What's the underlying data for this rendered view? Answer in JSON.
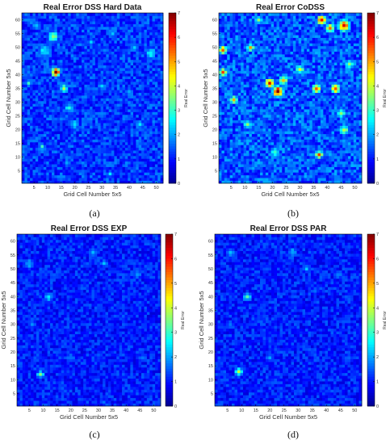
{
  "colors": {
    "colormap": [
      "#00008f",
      "#0000ff",
      "#0080ff",
      "#00ffff",
      "#80ff80",
      "#ffff00",
      "#ff8000",
      "#ff0000",
      "#800000"
    ],
    "frame": "#000000",
    "background": "#ffffff"
  },
  "chart_data": [
    {
      "type": "heatmap",
      "title": "Real Error DSS Hard Data",
      "xlabel": "Grid Cell Number 5x5",
      "ylabel": "Grid Cell Number 5x5",
      "colorbar_label": "Real Error",
      "caption": "(a)",
      "grid_size": [
        52,
        62
      ],
      "xlim": [
        0.5,
        52.5
      ],
      "ylim": [
        0.5,
        62.5
      ],
      "clim": [
        0,
        7
      ],
      "x_ticks": [
        5,
        10,
        15,
        20,
        25,
        30,
        35,
        40,
        45,
        50
      ],
      "y_ticks": [
        5,
        10,
        15,
        20,
        25,
        30,
        35,
        40,
        45,
        50,
        55,
        60
      ],
      "colorbar_ticks": [
        0,
        1,
        2,
        3,
        4,
        5,
        6,
        7
      ],
      "background_level": 1.25,
      "hotspots": [
        {
          "x": 13,
          "y": 41,
          "value": 6.6,
          "spread": 1.2
        },
        {
          "x": 12,
          "y": 54,
          "value": 3.6,
          "spread": 1.5
        },
        {
          "x": 9,
          "y": 49,
          "value": 2.6,
          "spread": 2.0
        },
        {
          "x": 16,
          "y": 35,
          "value": 3.8,
          "spread": 1.2
        },
        {
          "x": 18,
          "y": 28,
          "value": 2.6,
          "spread": 1.6
        },
        {
          "x": 20,
          "y": 22,
          "value": 2.4,
          "spread": 1.5
        },
        {
          "x": 6,
          "y": 58,
          "value": 2.2,
          "spread": 1.4
        },
        {
          "x": 8,
          "y": 14,
          "value": 2.8,
          "spread": 1.0
        },
        {
          "x": 3,
          "y": 37,
          "value": 2.8,
          "spread": 1.0
        },
        {
          "x": 48,
          "y": 48,
          "value": 2.8,
          "spread": 1.6
        },
        {
          "x": 42,
          "y": 50,
          "value": 2.3,
          "spread": 1.4
        },
        {
          "x": 26,
          "y": 52,
          "value": 2.2,
          "spread": 1.2
        },
        {
          "x": 34,
          "y": 55,
          "value": 2.1,
          "spread": 1.2
        },
        {
          "x": 44,
          "y": 22,
          "value": 2.4,
          "spread": 1.2
        },
        {
          "x": 30,
          "y": 36,
          "value": 2.1,
          "spread": 1.4
        },
        {
          "x": 40,
          "y": 34,
          "value": 2.0,
          "spread": 1.4
        },
        {
          "x": 33,
          "y": 4,
          "value": 2.4,
          "spread": 1.0
        },
        {
          "x": 17,
          "y": 8,
          "value": 2.0,
          "spread": 1.2
        }
      ]
    },
    {
      "type": "heatmap",
      "title": "Real Error CoDSS",
      "xlabel": "Grid Cell Number 5x5",
      "ylabel": "Grid Cell Number 5x5",
      "colorbar_label": "Real Error",
      "caption": "(b)",
      "grid_size": [
        52,
        62
      ],
      "xlim": [
        0.5,
        52.5
      ],
      "ylim": [
        0.5,
        62.5
      ],
      "clim": [
        0,
        7
      ],
      "x_ticks": [
        5,
        10,
        15,
        20,
        25,
        30,
        35,
        40,
        45,
        50
      ],
      "y_ticks": [
        5,
        10,
        15,
        20,
        25,
        30,
        35,
        40,
        45,
        50,
        55,
        60
      ],
      "colorbar_ticks": [
        0,
        1,
        2,
        3,
        4,
        5,
        6,
        7
      ],
      "background_level": 1.45,
      "hotspots": [
        {
          "x": 38,
          "y": 60,
          "value": 6.6,
          "spread": 1.2
        },
        {
          "x": 46,
          "y": 58,
          "value": 6.4,
          "spread": 1.5
        },
        {
          "x": 41,
          "y": 57,
          "value": 5.0,
          "spread": 1.2
        },
        {
          "x": 2,
          "y": 49,
          "value": 6.4,
          "spread": 1.0
        },
        {
          "x": 2,
          "y": 41,
          "value": 5.8,
          "spread": 1.0
        },
        {
          "x": 12,
          "y": 50,
          "value": 5.0,
          "spread": 1.0
        },
        {
          "x": 22,
          "y": 34,
          "value": 6.8,
          "spread": 1.4
        },
        {
          "x": 19,
          "y": 37,
          "value": 5.8,
          "spread": 1.3
        },
        {
          "x": 24,
          "y": 38,
          "value": 5.2,
          "spread": 1.1
        },
        {
          "x": 36,
          "y": 35,
          "value": 5.4,
          "spread": 1.2
        },
        {
          "x": 43,
          "y": 35,
          "value": 5.6,
          "spread": 1.2
        },
        {
          "x": 46,
          "y": 20,
          "value": 4.2,
          "spread": 1.2
        },
        {
          "x": 45,
          "y": 26,
          "value": 3.8,
          "spread": 1.2
        },
        {
          "x": 37,
          "y": 11,
          "value": 5.2,
          "spread": 1.0
        },
        {
          "x": 6,
          "y": 31,
          "value": 4.6,
          "spread": 1.1
        },
        {
          "x": 30,
          "y": 42,
          "value": 4.2,
          "spread": 1.2
        },
        {
          "x": 11,
          "y": 22,
          "value": 3.6,
          "spread": 1.2
        },
        {
          "x": 21,
          "y": 12,
          "value": 3.4,
          "spread": 1.2
        },
        {
          "x": 48,
          "y": 44,
          "value": 4.0,
          "spread": 1.2
        },
        {
          "x": 15,
          "y": 60,
          "value": 3.4,
          "spread": 1.2
        }
      ]
    },
    {
      "type": "heatmap",
      "title": "Real Error DSS EXP",
      "xlabel": "Grid Cell Number 5x5",
      "ylabel": "Grid Cell Number 5x5",
      "colorbar_label": "Real Error",
      "caption": "(c)",
      "grid_size": [
        52,
        62
      ],
      "xlim": [
        0.5,
        52.5
      ],
      "ylim": [
        0.5,
        62.5
      ],
      "clim": [
        0,
        7
      ],
      "x_ticks": [
        5,
        10,
        15,
        20,
        25,
        30,
        35,
        40,
        45,
        50
      ],
      "y_ticks": [
        5,
        10,
        15,
        20,
        25,
        30,
        35,
        40,
        45,
        50,
        55,
        60
      ],
      "colorbar_ticks": [
        0,
        1,
        2,
        3,
        4,
        5,
        6,
        7
      ],
      "background_level": 1.05,
      "hotspots": [
        {
          "x": 9,
          "y": 12,
          "value": 3.4,
          "spread": 1.0
        },
        {
          "x": 12,
          "y": 40,
          "value": 2.6,
          "spread": 1.3
        },
        {
          "x": 5,
          "y": 52,
          "value": 2.2,
          "spread": 1.5
        },
        {
          "x": 28,
          "y": 56,
          "value": 2.2,
          "spread": 1.4
        },
        {
          "x": 32,
          "y": 52,
          "value": 2.0,
          "spread": 1.2
        },
        {
          "x": 44,
          "y": 48,
          "value": 1.9,
          "spread": 1.4
        },
        {
          "x": 20,
          "y": 18,
          "value": 1.8,
          "spread": 1.5
        },
        {
          "x": 46,
          "y": 18,
          "value": 1.8,
          "spread": 1.4
        },
        {
          "x": 6,
          "y": 30,
          "value": 1.8,
          "spread": 1.4
        },
        {
          "x": 32,
          "y": 2,
          "value": 1.8,
          "spread": 1.0
        }
      ]
    },
    {
      "type": "heatmap",
      "title": "Real Error DSS PAR",
      "xlabel": "Grid Cell Number 5x5",
      "ylabel": "Grid Cell Number 5x5",
      "colorbar_label": "Real Error",
      "caption": "(d)",
      "grid_size": [
        52,
        62
      ],
      "xlim": [
        0.5,
        52.5
      ],
      "ylim": [
        0.5,
        62.5
      ],
      "clim": [
        0,
        7
      ],
      "x_ticks": [
        5,
        10,
        15,
        20,
        25,
        30,
        35,
        40,
        45,
        50
      ],
      "y_ticks": [
        5,
        10,
        15,
        20,
        25,
        30,
        35,
        40,
        45,
        50,
        55,
        60
      ],
      "colorbar_ticks": [
        0,
        1,
        2,
        3,
        4,
        5,
        6,
        7
      ],
      "background_level": 1.05,
      "hotspots": [
        {
          "x": 9,
          "y": 13,
          "value": 4.2,
          "spread": 1.0
        },
        {
          "x": 12,
          "y": 40,
          "value": 2.8,
          "spread": 1.3
        },
        {
          "x": 6,
          "y": 56,
          "value": 2.0,
          "spread": 1.5
        },
        {
          "x": 28,
          "y": 56,
          "value": 2.3,
          "spread": 1.4
        },
        {
          "x": 33,
          "y": 50,
          "value": 2.0,
          "spread": 1.2
        },
        {
          "x": 44,
          "y": 48,
          "value": 1.9,
          "spread": 1.4
        },
        {
          "x": 20,
          "y": 18,
          "value": 1.8,
          "spread": 1.5
        },
        {
          "x": 48,
          "y": 18,
          "value": 1.8,
          "spread": 1.4
        },
        {
          "x": 6,
          "y": 30,
          "value": 1.8,
          "spread": 1.4
        },
        {
          "x": 36,
          "y": 42,
          "value": 1.7,
          "spread": 1.3
        }
      ]
    }
  ]
}
